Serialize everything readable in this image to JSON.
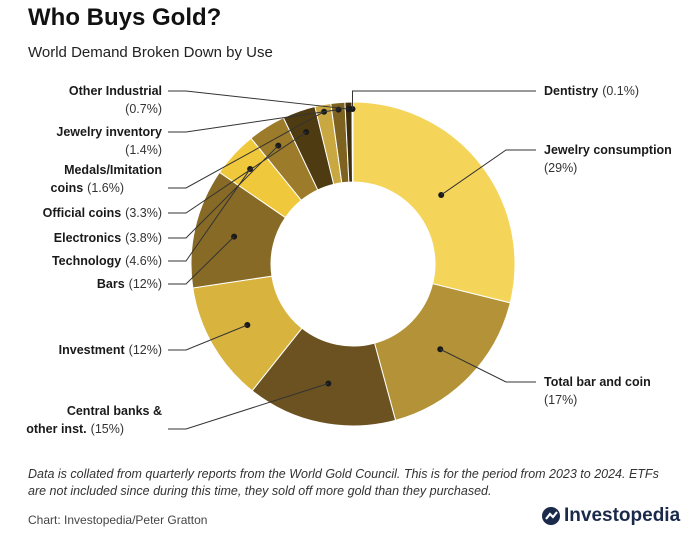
{
  "header": {
    "title": "Who Buys Gold?",
    "subtitle": "World Demand Broken Down by Use"
  },
  "footer": {
    "note": "Data is collated from quarterly reports from the World Gold Council. This is for the period from 2023 to 2024. ETFs are not included since during this time, they sold off more gold than they purchased.",
    "credit": "Chart: Investopedia/Peter Gratton",
    "brand": "Investopedia"
  },
  "chart_data": {
    "type": "pie",
    "style": "donut",
    "title": "Who Buys Gold?",
    "subtitle": "World Demand Broken Down by Use",
    "unit": "%",
    "slices": [
      {
        "name": "Jewelry consumption",
        "value": 29,
        "value_label": "(29%)",
        "color": "#f4d55a"
      },
      {
        "name": "Total bar and coin",
        "value": 17,
        "value_label": "(17%)",
        "color": "#b49237"
      },
      {
        "name": "Central banks & other inst.",
        "name_lines": [
          "Central banks &",
          "other inst."
        ],
        "value": 15,
        "value_label": "(15%)",
        "color": "#6b5220"
      },
      {
        "name": "Investment",
        "value": 12,
        "value_label": "(12%)",
        "color": "#d8b43f"
      },
      {
        "name": "Bars",
        "value": 12,
        "value_label": "(12%)",
        "color": "#876a25"
      },
      {
        "name": "Technology",
        "value": 4.6,
        "value_label": "(4.6%)",
        "color": "#f0c83b"
      },
      {
        "name": "Electronics",
        "value": 3.8,
        "value_label": "(3.8%)",
        "color": "#9c7b2a"
      },
      {
        "name": "Official coins",
        "value": 3.3,
        "value_label": "(3.3%)",
        "color": "#4e3b12"
      },
      {
        "name": "Medals/Imitation coins",
        "name_lines": [
          "Medals/Imitation",
          "coins"
        ],
        "value": 1.6,
        "value_label": "(1.6%)",
        "color": "#c9a741"
      },
      {
        "name": "Jewelry inventory",
        "value": 1.4,
        "value_label": "(1.4%)",
        "color": "#7d6220"
      },
      {
        "name": "Other Industrial",
        "value": 0.7,
        "value_label": "(0.7%)",
        "color": "#3d2e0d"
      },
      {
        "name": "Dentistry",
        "value": 0.1,
        "value_label": "(0.1%)",
        "color": "#f5dc70"
      }
    ]
  }
}
